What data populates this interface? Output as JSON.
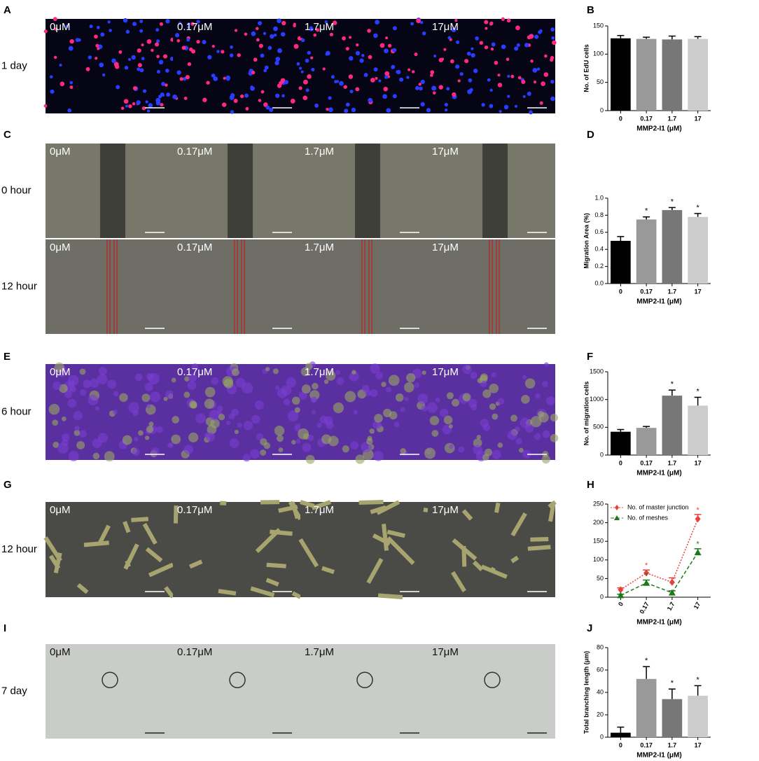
{
  "image_panels": [
    {
      "letter": "A",
      "rows": [
        {
          "label": "1 day",
          "conditions": [
            "0μM",
            "0.17μM",
            "1.7μM",
            "17μM"
          ]
        }
      ]
    },
    {
      "letter": "C",
      "rows": [
        {
          "label": "0 hour",
          "conditions": [
            "0μM",
            "0.17μM",
            "1.7μM",
            "17μM"
          ]
        },
        {
          "label": "12 hour",
          "conditions": [
            "0μM",
            "0.17μM",
            "1.7μM",
            "17μM"
          ]
        }
      ]
    },
    {
      "letter": "E",
      "rows": [
        {
          "label": "6 hour",
          "conditions": [
            "0μM",
            "0.17μM",
            "1.7μM",
            "17μM"
          ]
        }
      ]
    },
    {
      "letter": "G",
      "rows": [
        {
          "label": "12 hour",
          "conditions": [
            "0μM",
            "0.17μM",
            "1.7μM",
            "17μM"
          ]
        }
      ]
    },
    {
      "letter": "I",
      "rows": [
        {
          "label": "7 day",
          "conditions": [
            "0μM",
            "0.17μM",
            "1.7μM",
            "17μM"
          ]
        }
      ]
    }
  ],
  "chart_data": [
    {
      "panel": "B",
      "type": "bar",
      "categories": [
        "0",
        "0.17",
        "1.7",
        "17"
      ],
      "values": [
        128,
        127,
        126,
        127
      ],
      "errors": [
        5,
        3,
        6,
        4
      ],
      "colors": [
        "#000000",
        "#999999",
        "#777777",
        "#cccccc"
      ],
      "x_label": "MMP2-I1 (μM)",
      "y_label": "No. of EdU cells",
      "ylim": [
        0,
        150
      ],
      "yticks": [
        0,
        50,
        100,
        150
      ]
    },
    {
      "panel": "D",
      "type": "bar",
      "categories": [
        "0",
        "0.17",
        "1.7",
        "17"
      ],
      "values": [
        0.5,
        0.75,
        0.86,
        0.78
      ],
      "errors": [
        0.05,
        0.03,
        0.03,
        0.04
      ],
      "stars": [
        null,
        "*",
        "*",
        "*"
      ],
      "colors": [
        "#000000",
        "#999999",
        "#777777",
        "#cccccc"
      ],
      "x_label": "MMP2-I1 (μM)",
      "y_label": "Migration Area (%)",
      "ylim": [
        0,
        1
      ],
      "yticks": [
        {
          "value": 0,
          "label": "0.0"
        },
        0.2,
        0.4,
        0.6,
        0.8,
        {
          "value": 1,
          "label": "1.0"
        }
      ]
    },
    {
      "panel": "F",
      "type": "bar",
      "categories": [
        "0",
        "0.17",
        "1.7",
        "17"
      ],
      "values": [
        420,
        490,
        1070,
        890
      ],
      "errors": [
        40,
        25,
        100,
        150
      ],
      "stars": [
        null,
        null,
        "*",
        "*"
      ],
      "colors": [
        "#000000",
        "#999999",
        "#777777",
        "#cccccc"
      ],
      "x_label": "MMP2-I1 (μM)",
      "y_label": "No. of migration cells",
      "ylim": [
        0,
        1500
      ],
      "yticks": [
        0,
        500,
        1000,
        1500
      ]
    },
    {
      "panel": "H",
      "type": "line",
      "categories": [
        "0",
        "0.17",
        "1.7",
        "17"
      ],
      "series": [
        {
          "name": "No. of master junction",
          "color": "#e8403a",
          "marker": "diamond",
          "values": [
            20,
            65,
            40,
            210
          ],
          "errors": [
            5,
            8,
            12,
            12
          ],
          "stars": [
            null,
            "*",
            null,
            "*"
          ]
        },
        {
          "name": "No. of meshes",
          "color": "#1a7a1a",
          "marker": "triangle",
          "values": [
            5,
            38,
            12,
            120
          ],
          "errors": [
            3,
            8,
            5,
            10
          ],
          "stars": [
            null,
            "*",
            null,
            "*"
          ]
        }
      ],
      "legend": "upper left",
      "x_label": "MMP2-I1 (μM)",
      "ylim": [
        0,
        250
      ],
      "yticks": [
        0,
        50,
        100,
        150,
        200,
        250
      ]
    },
    {
      "panel": "J",
      "type": "bar",
      "categories": [
        "0",
        "0.17",
        "1.7",
        "17"
      ],
      "values": [
        4,
        52,
        34,
        37
      ],
      "errors": [
        5,
        11,
        9,
        9
      ],
      "stars": [
        null,
        "*",
        "*",
        "*"
      ],
      "colors": [
        "#000000",
        "#999999",
        "#777777",
        "#cccccc"
      ],
      "x_label": "MMP2-I1 (μM)",
      "y_label": "Total branching length (μm)",
      "ylim": [
        0,
        80
      ],
      "yticks": [
        0,
        20,
        40,
        60,
        80
      ]
    }
  ]
}
